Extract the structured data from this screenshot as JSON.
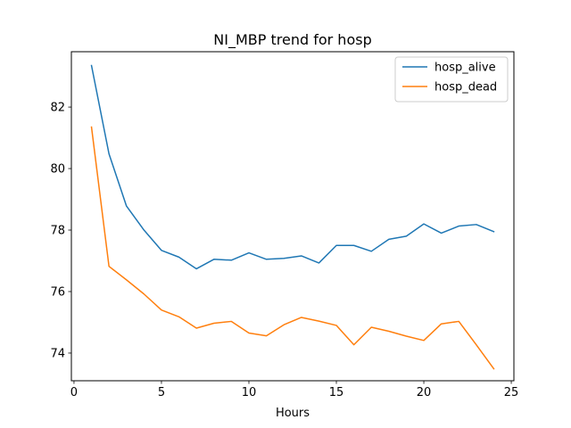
{
  "chart_data": {
    "type": "line",
    "title": "NI_MBP trend for hosp",
    "xlabel": "Hours",
    "ylabel": "",
    "xlim": [
      -0.15,
      25.15
    ],
    "ylim": [
      73.1,
      83.8
    ],
    "xticks": [
      0,
      5,
      10,
      15,
      20,
      25
    ],
    "yticks": [
      74,
      76,
      78,
      80,
      82
    ],
    "legend_position": "top-right",
    "grid": false,
    "x": [
      1,
      2,
      3,
      4,
      5,
      6,
      7,
      8,
      9,
      10,
      11,
      12,
      13,
      14,
      15,
      16,
      17,
      18,
      19,
      20,
      21,
      22,
      23,
      24
    ],
    "series": [
      {
        "name": "hosp_alive",
        "color": "#1f77b4",
        "values": [
          83.35,
          80.48,
          78.78,
          78.0,
          77.34,
          77.12,
          76.74,
          77.05,
          77.02,
          77.26,
          77.05,
          77.08,
          77.16,
          76.93,
          77.5,
          77.5,
          77.31,
          77.7,
          77.8,
          78.2,
          77.9,
          78.13,
          78.18,
          77.95
        ]
      },
      {
        "name": "hosp_dead",
        "color": "#ff7f0e",
        "values": [
          81.35,
          76.82,
          76.38,
          75.92,
          75.4,
          75.18,
          74.81,
          74.97,
          75.03,
          74.65,
          74.56,
          74.92,
          75.16,
          75.04,
          74.9,
          74.27,
          74.84,
          74.71,
          74.55,
          74.41,
          74.95,
          75.03,
          74.27,
          73.49
        ]
      }
    ]
  }
}
